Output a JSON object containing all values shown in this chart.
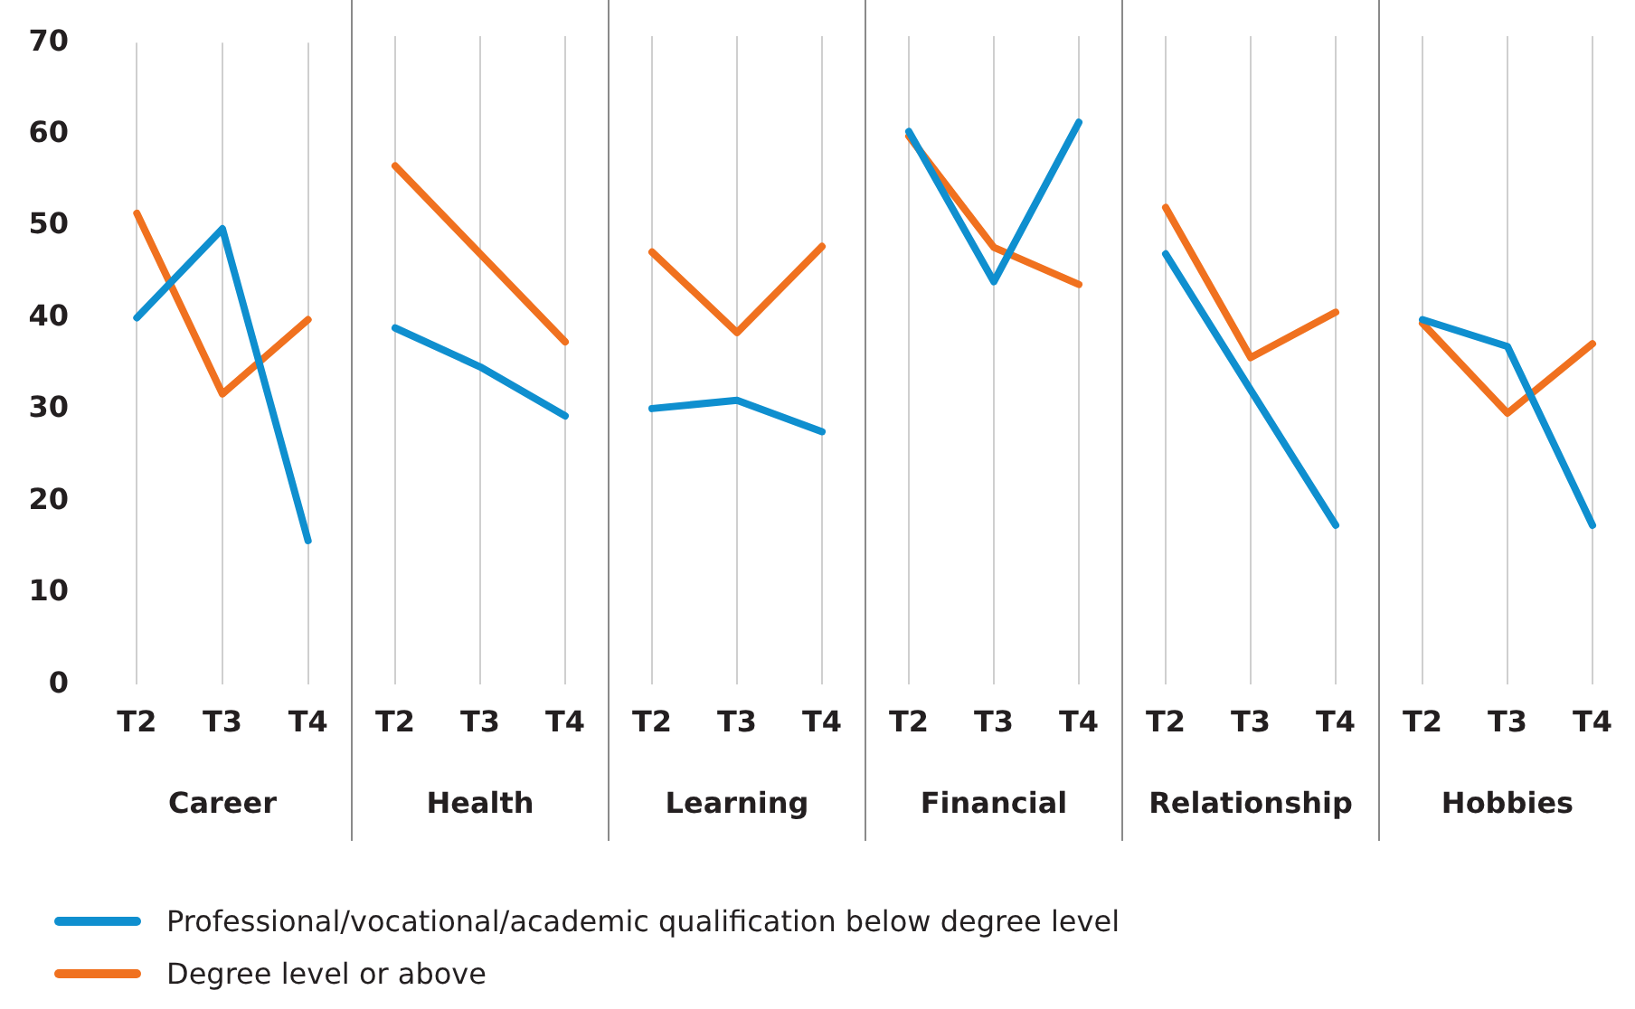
{
  "chart_data": [
    {
      "type": "line",
      "xlabel": "Career",
      "categories": [
        "T2",
        "T3",
        "T4"
      ],
      "ylim": [
        0,
        70
      ],
      "yticks": [
        0,
        10,
        20,
        30,
        40,
        50,
        60,
        70
      ],
      "grid": "x",
      "marker": "none",
      "line_style": "solid",
      "legend": "bottom",
      "series": [
        {
          "name": "Professional/vocational/academic qualification below degree level",
          "color": "#0f8fcf",
          "values": [
            40,
            49.7,
            15.7
          ]
        },
        {
          "name": "Degree level or above",
          "color": "#f0711f",
          "values": [
            51.4,
            31.7,
            39.8
          ]
        }
      ]
    },
    {
      "type": "line",
      "xlabel": "Health",
      "categories": [
        "T2",
        "T3",
        "T4"
      ],
      "ylim": [
        0,
        70
      ],
      "yticks": [
        0,
        10,
        20,
        30,
        40,
        50,
        60,
        70
      ],
      "grid": "x",
      "marker": "none",
      "line_style": "solid",
      "tick_labels": "x",
      "series": [
        {
          "color": "#0f8fcf",
          "values": [
            38.5,
            34.3,
            29
          ]
        },
        {
          "color": "#f0711f",
          "values": [
            56,
            46.5,
            37
          ]
        }
      ]
    },
    {
      "type": "line",
      "xlabel": "Learning",
      "categories": [
        "T2",
        "T3",
        "T4"
      ],
      "ylim": [
        0,
        70
      ],
      "yticks": [
        0,
        10,
        20,
        30,
        40,
        50,
        60,
        70
      ],
      "grid": "x",
      "marker": "none",
      "line_style": "solid",
      "tick_labels": "x",
      "series": [
        {
          "color": "#0f8fcf",
          "values": [
            29.8,
            30.7,
            27.3
          ]
        },
        {
          "color": "#f0711f",
          "values": [
            46.7,
            38,
            47.3
          ]
        }
      ]
    },
    {
      "type": "line",
      "xlabel": "Financial",
      "categories": [
        "T2",
        "T3",
        "T4"
      ],
      "ylim": [
        0,
        70
      ],
      "yticks": [
        0,
        10,
        20,
        30,
        40,
        50,
        60,
        70
      ],
      "grid": "x",
      "marker": "none",
      "line_style": "solid",
      "tick_labels": "x",
      "series": [
        {
          "color": "#0f8fcf",
          "values": [
            59.7,
            43.5,
            60.7
          ]
        },
        {
          "color": "#f0711f",
          "values": [
            59.2,
            47.2,
            43.2
          ]
        }
      ]
    },
    {
      "type": "line",
      "xlabel": "Relationship",
      "categories": [
        "T2",
        "T3",
        "T4"
      ],
      "ylim": [
        0,
        70
      ],
      "yticks": [
        0,
        10,
        20,
        30,
        40,
        50,
        60,
        70
      ],
      "grid": "x",
      "marker": "none",
      "line_style": "solid",
      "tick_labels": "x",
      "series": [
        {
          "color": "#0f8fcf",
          "values": [
            46.5,
            31.8,
            17.2
          ]
        },
        {
          "color": "#f0711f",
          "values": [
            51.5,
            35.3,
            40.2
          ]
        }
      ]
    },
    {
      "type": "line",
      "xlabel": "Hobbies",
      "categories": [
        "T2",
        "T3",
        "T4"
      ],
      "ylim": [
        0,
        70
      ],
      "yticks": [
        0,
        10,
        20,
        30,
        40,
        50,
        60,
        70
      ],
      "grid": "x",
      "marker": "none",
      "line_style": "solid",
      "tick_labels": "x",
      "series": [
        {
          "color": "#0f8fcf",
          "values": [
            39.4,
            36.5,
            17.2
          ]
        },
        {
          "color": "#f0711f",
          "values": [
            39,
            29.3,
            36.8
          ]
        }
      ]
    }
  ]
}
